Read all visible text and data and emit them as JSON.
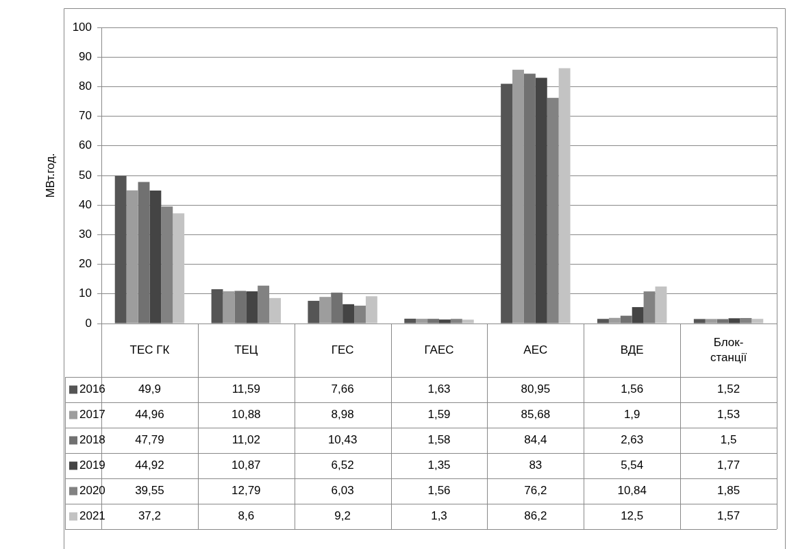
{
  "chart_data": {
    "type": "bar",
    "ylabel": "МВт.год.",
    "categories": [
      "ТЕС ГК",
      "ТЕЦ",
      "ГЕС",
      "ГАЕС",
      "АЕС",
      "ВДЕ",
      "Блок-станції"
    ],
    "series": [
      {
        "name": "2016",
        "color": "#555555",
        "values": [
          49.9,
          11.59,
          7.66,
          1.63,
          80.95,
          1.56,
          1.52
        ],
        "value_labels": [
          "49,9",
          "11,59",
          "7,66",
          "1,63",
          "80,95",
          "1,56",
          "1,52"
        ]
      },
      {
        "name": "2017",
        "color": "#9d9d9d",
        "values": [
          44.96,
          10.88,
          8.98,
          1.59,
          85.68,
          1.9,
          1.53
        ],
        "value_labels": [
          "44,96",
          "10,88",
          "8,98",
          "1,59",
          "85,68",
          "1,9",
          "1,53"
        ]
      },
      {
        "name": "2018",
        "color": "#717171",
        "values": [
          47.79,
          11.02,
          10.43,
          1.58,
          84.4,
          2.63,
          1.5
        ],
        "value_labels": [
          "47,79",
          "11,02",
          "10,43",
          "1,58",
          "84,4",
          "2,63",
          "1,5"
        ]
      },
      {
        "name": "2019",
        "color": "#444444",
        "values": [
          44.92,
          10.87,
          6.52,
          1.35,
          83,
          5.54,
          1.77
        ],
        "value_labels": [
          "44,92",
          "10,87",
          "6,52",
          "1,35",
          "83",
          "5,54",
          "1,77"
        ]
      },
      {
        "name": "2020",
        "color": "#828282",
        "values": [
          39.55,
          12.79,
          6.03,
          1.56,
          76.2,
          10.84,
          1.85
        ],
        "value_labels": [
          "39,55",
          "12,79",
          "6,03",
          "1,56",
          "76,2",
          "10,84",
          "1,85"
        ]
      },
      {
        "name": "2021",
        "color": "#c3c3c3",
        "values": [
          37.2,
          8.6,
          9.2,
          1.3,
          86.2,
          12.5,
          1.57
        ],
        "value_labels": [
          "37,2",
          "8,6",
          "9,2",
          "1,3",
          "86,2",
          "12,5",
          "1,57"
        ]
      }
    ],
    "ylim": [
      0,
      100
    ],
    "yticks": [
      0,
      10,
      20,
      30,
      40,
      50,
      60,
      70,
      80,
      90,
      100
    ],
    "grid": "y",
    "legend": "bottom"
  }
}
